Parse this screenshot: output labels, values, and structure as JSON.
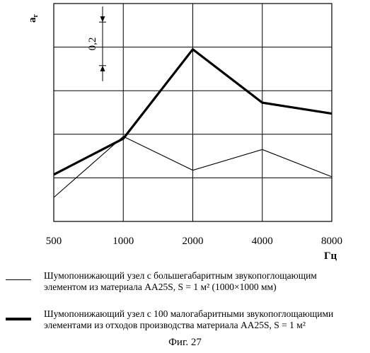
{
  "chart_data": {
    "type": "line",
    "ylabel_main": "a",
    "ylabel_sub": "г",
    "xlabel": "Гц",
    "categories": [
      "500",
      "1000",
      "2000",
      "4000",
      "8000"
    ],
    "series": [
      {
        "style": "thin",
        "values": [
          0.22,
          0.78,
          0.47,
          0.66,
          0.41
        ]
      },
      {
        "style": "thick",
        "values": [
          0.43,
          0.76,
          1.58,
          1.09,
          0.99
        ]
      }
    ],
    "ylim": [
      0.0,
      2.0
    ],
    "grid": true,
    "scale_marker": {
      "label": "0,2",
      "from": 1.43,
      "to": 1.83
    }
  },
  "legend": [
    {
      "style": "thin",
      "line1": "Шумопонижающий узел с большегабаритным звукопоглощающим",
      "line2": "элементом из материала AA25S, S = 1 м² (1000×1000 мм)"
    },
    {
      "style": "thick",
      "line1": "Шумопонижающий узел с 100 малогабаритными звукопоглощающими",
      "line2": "элементами из отходов производства материала AA25S, S = 1 м²"
    }
  ],
  "caption": "Фиг. 27"
}
